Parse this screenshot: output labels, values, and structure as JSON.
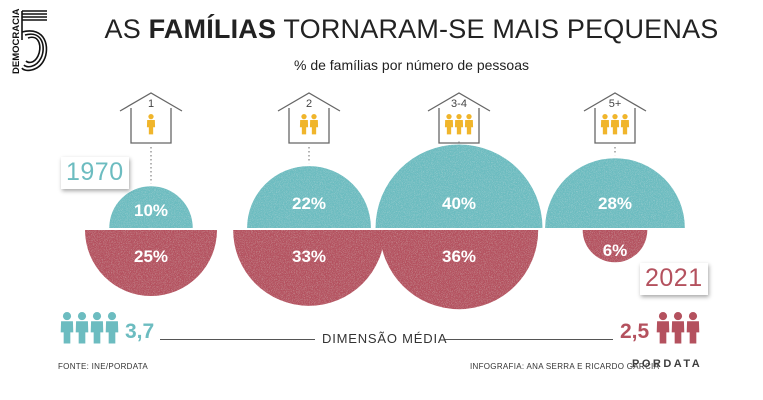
{
  "brand": {
    "logo_text": "DEMOCRACIA",
    "logo_number": "5"
  },
  "title": {
    "prefix": "AS ",
    "bold": "FAMÍLIAS",
    "suffix": " TORNARAM-SE MAIS PEQUENAS"
  },
  "subtitle": "% de famílias por número de pessoas",
  "years": {
    "start": "1970",
    "end": "2021"
  },
  "colors": {
    "y1970": "#6cbcc0",
    "y2021": "#b4515e",
    "house_figure": "#f0b52b",
    "house_outline": "#666666"
  },
  "average": {
    "label": "DIMENSÃO MÉDIA",
    "y1970": "3,7",
    "y2021": "2,5"
  },
  "footer": {
    "source": "FONTE: INE/PORDATA",
    "credits": "INFOGRAFIA: ANA SERRA E RICARDO GARCIA",
    "pordata": "PORDATA"
  },
  "chart_data": {
    "type": "bar",
    "title": "AS FAMÍLIAS TORNARAM-SE MAIS PEQUENAS",
    "subtitle": "% de famílias por número de pessoas",
    "categories": [
      "1",
      "2",
      "3-4",
      "5+"
    ],
    "category_people": [
      1,
      2,
      3,
      3
    ],
    "unit": "%",
    "series": [
      {
        "name": "1970",
        "values": [
          10,
          22,
          40,
          28
        ],
        "labels": [
          "10%",
          "22%",
          "40%",
          "28%"
        ]
      },
      {
        "name": "2021",
        "values": [
          25,
          33,
          36,
          6
        ],
        "labels": [
          "25%",
          "33%",
          "36%",
          "6%"
        ]
      }
    ]
  }
}
